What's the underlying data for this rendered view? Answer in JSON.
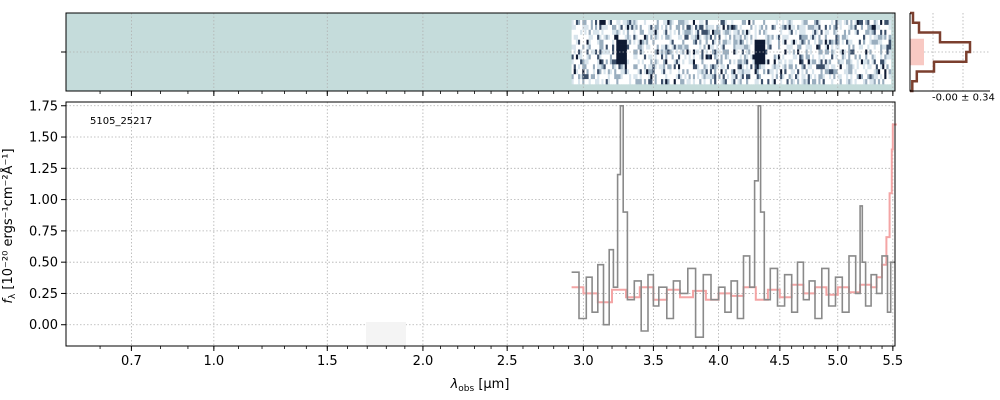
{
  "chart_data": [
    {
      "panel": "2d-spectrum",
      "type": "heatmap",
      "rows": 13,
      "data_start_um": 2.92,
      "data_end_um": 5.48,
      "empty_color": "#c5dcdb",
      "colormap": [
        "#ffffff",
        "#d8e4ec",
        "#9aaebf",
        "#3c506b",
        "#0e1a33"
      ],
      "bright_spots_um": [
        3.26,
        4.33
      ]
    },
    {
      "panel": "1d-spectrum",
      "type": "line",
      "label": "5105_25217",
      "xlabel": "λobs [μm]",
      "xlabel_base": "λ",
      "xlabel_sub": "obs",
      "xlabel_unit": " [μm]",
      "ylabel": "fλ [10⁻²⁰ ergs⁻¹cm⁻²Å⁻¹]",
      "ylabel_base": "f",
      "ylabel_sub": "λ",
      "ylabel_unit": " [10⁻²⁰ ergs⁻¹cm⁻²Å⁻¹]",
      "x_scale": "sqrt",
      "xlim": [
        0.5,
        5.52
      ],
      "ylim": [
        -0.17,
        1.78
      ],
      "x_ticks": [
        0.7,
        1.0,
        1.5,
        2.0,
        2.5,
        3.0,
        3.5,
        4.0,
        4.5,
        5.0,
        5.5
      ],
      "x_tick_labels": [
        "0.7",
        "1.0",
        "1.5",
        "2.0",
        "2.5",
        "3.0",
        "3.5",
        "4.0",
        "4.5",
        "5.0",
        "5.5"
      ],
      "y_ticks": [
        0.0,
        0.25,
        0.5,
        0.75,
        1.0,
        1.25,
        1.5,
        1.75
      ],
      "y_tick_labels": [
        "0.00",
        "0.25",
        "0.50",
        "0.75",
        "1.00",
        "1.25",
        "1.50",
        "1.75"
      ],
      "grid": true,
      "series": [
        {
          "role": "flux",
          "style": "step",
          "color": "#8a8a8a",
          "x": [
            2.92,
            2.97,
            3.02,
            3.06,
            3.1,
            3.14,
            3.18,
            3.21,
            3.24,
            3.26,
            3.28,
            3.31,
            3.36,
            3.41,
            3.46,
            3.5,
            3.54,
            3.6,
            3.65,
            3.7,
            3.76,
            3.82,
            3.88,
            3.94,
            4.0,
            4.05,
            4.1,
            4.15,
            4.2,
            4.25,
            4.29,
            4.32,
            4.34,
            4.37,
            4.42,
            4.48,
            4.54,
            4.6,
            4.65,
            4.7,
            4.75,
            4.8,
            4.86,
            4.92,
            4.98,
            5.04,
            5.1,
            5.16,
            5.2,
            5.22,
            5.25,
            5.3,
            5.35,
            5.4,
            5.45,
            5.48
          ],
          "y": [
            0.42,
            0.05,
            0.38,
            0.1,
            0.48,
            0.0,
            0.6,
            0.3,
            1.2,
            1.75,
            0.9,
            0.2,
            0.35,
            -0.05,
            0.4,
            0.15,
            0.3,
            0.05,
            0.35,
            0.25,
            0.45,
            -0.1,
            0.4,
            0.2,
            0.3,
            0.1,
            0.35,
            0.05,
            0.55,
            0.3,
            1.15,
            1.75,
            0.9,
            0.2,
            0.45,
            0.15,
            0.4,
            0.1,
            0.5,
            0.2,
            0.35,
            0.05,
            0.45,
            0.15,
            0.38,
            0.1,
            0.55,
            0.25,
            0.95,
            0.5,
            0.15,
            0.4,
            0.25,
            0.55,
            0.1,
            0.5
          ]
        },
        {
          "role": "model",
          "style": "step",
          "color": "#f4a5a5",
          "x": [
            2.92,
            3.0,
            3.1,
            3.2,
            3.3,
            3.4,
            3.5,
            3.6,
            3.7,
            3.8,
            3.9,
            4.0,
            4.1,
            4.2,
            4.3,
            4.4,
            4.5,
            4.6,
            4.7,
            4.8,
            4.9,
            5.0,
            5.1,
            5.2,
            5.3,
            5.35,
            5.4,
            5.44,
            5.47,
            5.49,
            5.5
          ],
          "y": [
            0.3,
            0.25,
            0.18,
            0.28,
            0.22,
            0.3,
            0.2,
            0.28,
            0.22,
            0.27,
            0.2,
            0.25,
            0.23,
            0.3,
            0.2,
            0.28,
            0.22,
            0.32,
            0.25,
            0.3,
            0.24,
            0.3,
            0.26,
            0.32,
            0.3,
            0.38,
            0.48,
            0.7,
            1.05,
            1.4,
            1.6
          ]
        }
      ]
    },
    {
      "panel": "residual-histogram",
      "type": "bar",
      "annotation": "-0.00 ± 0.34",
      "bins": [
        -1.0,
        -0.75,
        -0.5,
        -0.25,
        0.0,
        0.25,
        0.5,
        0.75,
        1.0
      ],
      "counts": [
        0.3,
        0.9,
        3.2,
        7.5,
        8.0,
        4.0,
        1.2,
        0.4
      ],
      "color": "#7b3f2e"
    }
  ]
}
